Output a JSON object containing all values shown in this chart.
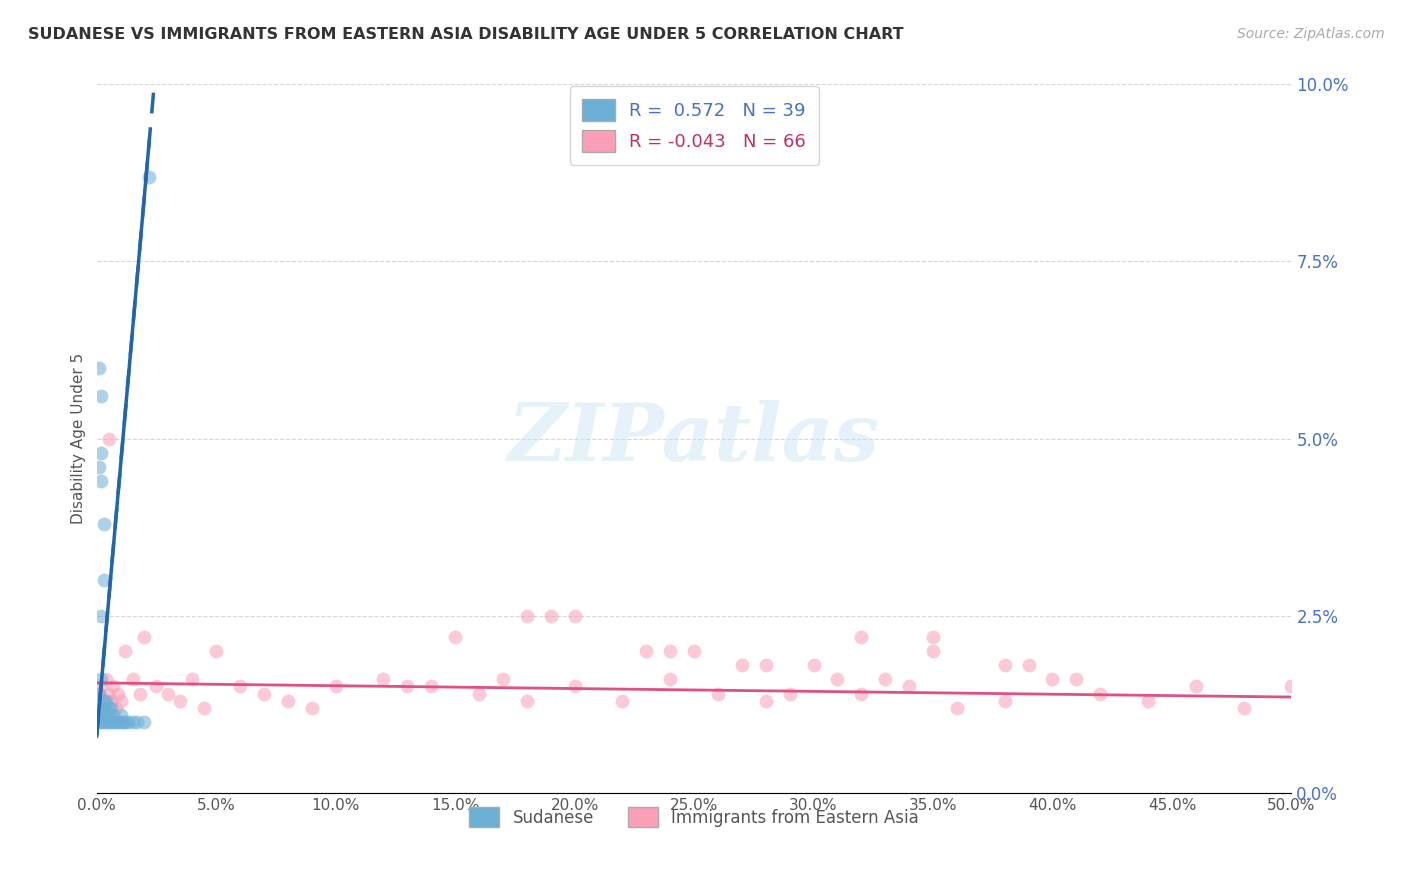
{
  "title": "SUDANESE VS IMMIGRANTS FROM EASTERN ASIA DISABILITY AGE UNDER 5 CORRELATION CHART",
  "source": "Source: ZipAtlas.com",
  "ylabel": "Disability Age Under 5",
  "legend_label1": "Sudanese",
  "legend_label2": "Immigrants from Eastern Asia",
  "R1": 0.572,
  "N1": 39,
  "R2": -0.043,
  "N2": 66,
  "xlim": [
    0.0,
    0.5
  ],
  "ylim": [
    0.0,
    0.1
  ],
  "xticks": [
    0.0,
    0.05,
    0.1,
    0.15,
    0.2,
    0.25,
    0.3,
    0.35,
    0.4,
    0.45,
    0.5
  ],
  "yticks": [
    0.0,
    0.025,
    0.05,
    0.075,
    0.1
  ],
  "color_blue": "#6baed6",
  "color_pink": "#fa9fb5",
  "trend_blue": "#2166ac",
  "trend_pink": "#e05080",
  "background": "#ffffff",
  "blue_x": [
    0.001,
    0.001,
    0.001,
    0.002,
    0.002,
    0.002,
    0.003,
    0.003,
    0.003,
    0.003,
    0.004,
    0.004,
    0.004,
    0.005,
    0.005,
    0.005,
    0.006,
    0.006,
    0.007,
    0.007,
    0.008,
    0.009,
    0.01,
    0.01,
    0.011,
    0.012,
    0.013,
    0.015,
    0.017,
    0.02,
    0.001,
    0.002,
    0.003,
    0.001,
    0.002,
    0.002,
    0.003,
    0.002,
    0.022
  ],
  "blue_y": [
    0.01,
    0.012,
    0.014,
    0.01,
    0.012,
    0.016,
    0.01,
    0.011,
    0.012,
    0.013,
    0.01,
    0.011,
    0.013,
    0.01,
    0.011,
    0.012,
    0.01,
    0.012,
    0.01,
    0.011,
    0.01,
    0.01,
    0.011,
    0.01,
    0.01,
    0.01,
    0.01,
    0.01,
    0.01,
    0.01,
    0.046,
    0.044,
    0.038,
    0.06,
    0.048,
    0.025,
    0.03,
    0.056,
    0.087
  ],
  "pink_x": [
    0.001,
    0.002,
    0.003,
    0.004,
    0.005,
    0.006,
    0.007,
    0.008,
    0.009,
    0.01,
    0.012,
    0.015,
    0.018,
    0.02,
    0.025,
    0.03,
    0.035,
    0.04,
    0.045,
    0.05,
    0.06,
    0.07,
    0.08,
    0.09,
    0.1,
    0.12,
    0.14,
    0.16,
    0.18,
    0.2,
    0.22,
    0.24,
    0.26,
    0.28,
    0.3,
    0.32,
    0.34,
    0.36,
    0.38,
    0.4,
    0.42,
    0.44,
    0.46,
    0.48,
    0.5,
    0.15,
    0.25,
    0.35,
    0.18,
    0.28,
    0.32,
    0.38,
    0.41,
    0.19,
    0.23,
    0.27,
    0.31,
    0.35,
    0.39,
    0.2,
    0.24,
    0.005,
    0.13,
    0.17,
    0.29,
    0.33
  ],
  "pink_y": [
    0.014,
    0.015,
    0.013,
    0.016,
    0.014,
    0.013,
    0.015,
    0.012,
    0.014,
    0.013,
    0.02,
    0.016,
    0.014,
    0.022,
    0.015,
    0.014,
    0.013,
    0.016,
    0.012,
    0.02,
    0.015,
    0.014,
    0.013,
    0.012,
    0.015,
    0.016,
    0.015,
    0.014,
    0.013,
    0.015,
    0.013,
    0.016,
    0.014,
    0.013,
    0.018,
    0.014,
    0.015,
    0.012,
    0.013,
    0.016,
    0.014,
    0.013,
    0.015,
    0.012,
    0.015,
    0.022,
    0.02,
    0.022,
    0.025,
    0.018,
    0.022,
    0.018,
    0.016,
    0.025,
    0.02,
    0.018,
    0.016,
    0.02,
    0.018,
    0.025,
    0.02,
    0.05,
    0.015,
    0.016,
    0.014,
    0.016
  ],
  "blue_trend_x": [
    0.0,
    0.022
  ],
  "blue_trend_y": [
    0.008,
    0.092
  ],
  "pink_trend_x": [
    0.0,
    0.5
  ],
  "pink_trend_y": [
    0.0155,
    0.0135
  ]
}
